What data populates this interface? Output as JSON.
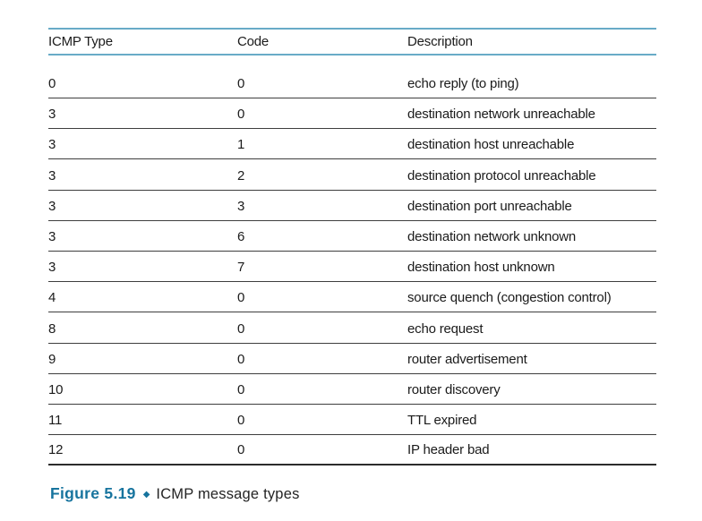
{
  "table": {
    "headers": [
      "ICMP Type",
      "Code",
      "Description"
    ],
    "rows": [
      {
        "type": "0",
        "code": "0",
        "description": "echo reply (to ping)"
      },
      {
        "type": "3",
        "code": "0",
        "description": "destination network unreachable"
      },
      {
        "type": "3",
        "code": "1",
        "description": "destination host unreachable"
      },
      {
        "type": "3",
        "code": "2",
        "description": "destination protocol unreachable"
      },
      {
        "type": "3",
        "code": "3",
        "description": "destination port unreachable"
      },
      {
        "type": "3",
        "code": "6",
        "description": "destination network unknown"
      },
      {
        "type": "3",
        "code": "7",
        "description": "destination host unknown"
      },
      {
        "type": "4",
        "code": "0",
        "description": "source quench (congestion control)"
      },
      {
        "type": "8",
        "code": "0",
        "description": "echo request"
      },
      {
        "type": "9",
        "code": "0",
        "description": "router advertisement"
      },
      {
        "type": "10",
        "code": "0",
        "description": "router discovery"
      },
      {
        "type": "11",
        "code": "0",
        "description": "TTL expired"
      },
      {
        "type": "12",
        "code": "0",
        "description": "IP header bad"
      }
    ]
  },
  "caption": {
    "figure_label": "Figure 5.19",
    "separator_icon": "◆",
    "text": "ICMP message types"
  },
  "colors": {
    "header_rule": "#68abc7",
    "row_rule": "#3e3e3e",
    "caption_accent": "#17749e",
    "text": "#1b1b1b"
  }
}
